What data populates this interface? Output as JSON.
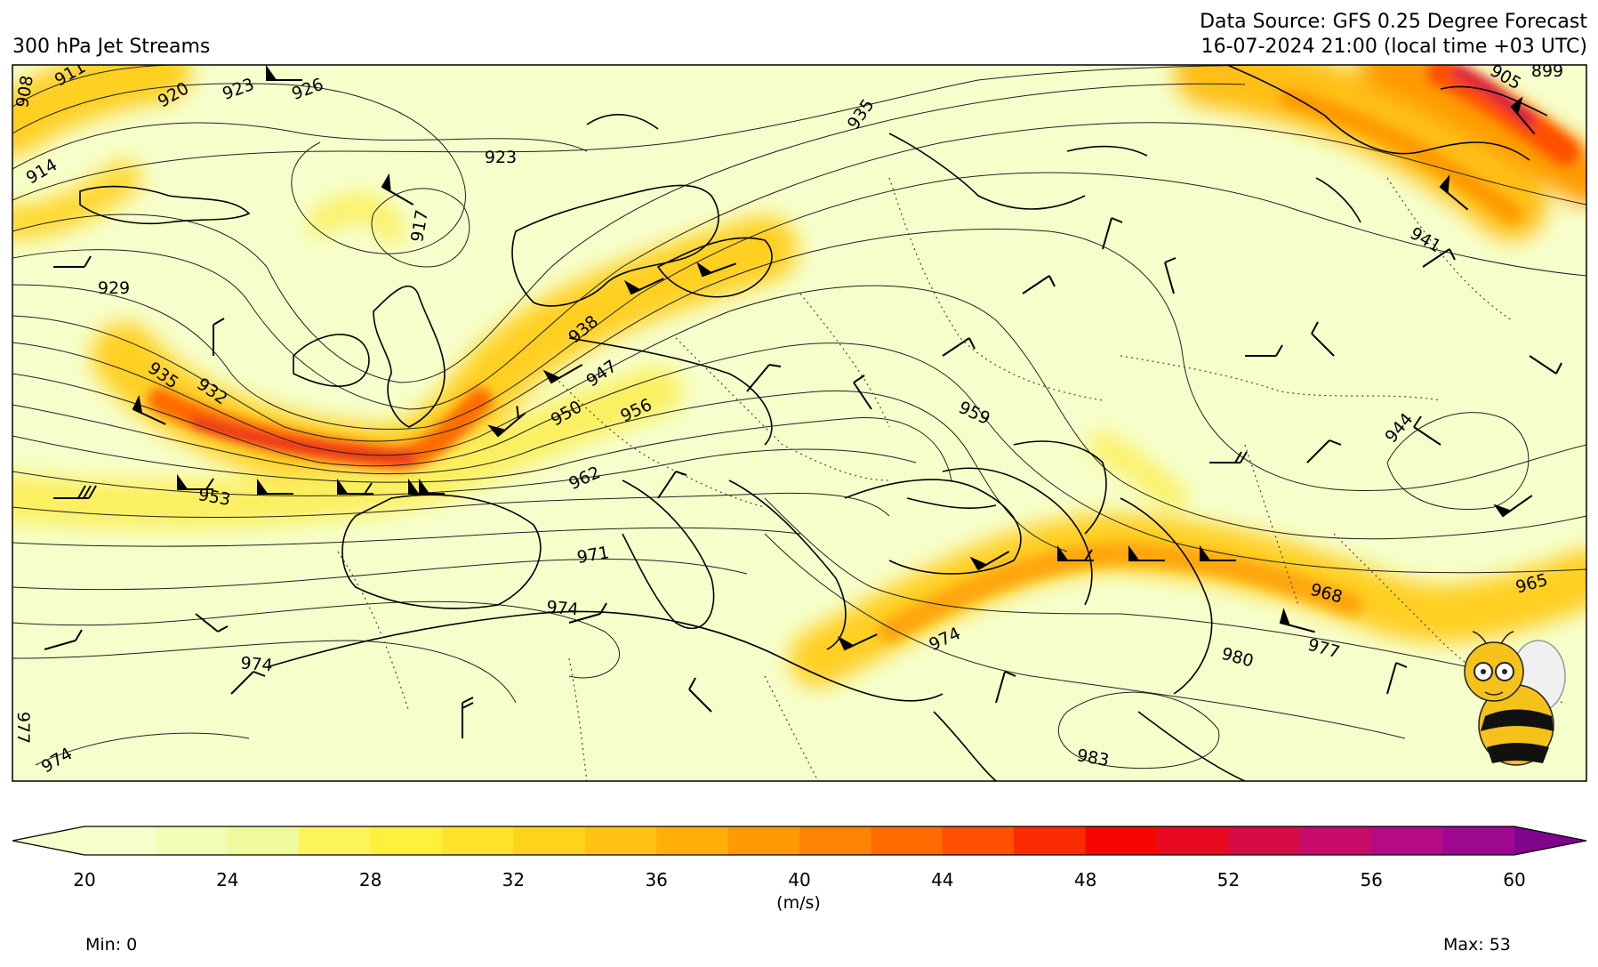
{
  "header": {
    "title": "300 hPa Jet Streams",
    "data_source": "Data Source: GFS 0.25 Degree Forecast",
    "valid_time": "16-07-2024 21:00 (local time +03 UTC)"
  },
  "colorbar": {
    "ticks": [
      "20",
      "24",
      "28",
      "32",
      "36",
      "40",
      "44",
      "48",
      "52",
      "56",
      "60"
    ],
    "unit": "(m/s)",
    "colors": [
      "#f6ffcc",
      "#f2fcb4",
      "#f0fa9c",
      "#fbf45a",
      "#fff03c",
      "#ffe32a",
      "#ffd31c",
      "#ffc212",
      "#ffae0a",
      "#ff9a05",
      "#ff8303",
      "#ff6a01",
      "#ff4f00",
      "#fb2b00",
      "#f50600",
      "#e80a20",
      "#d60a45",
      "#c80a6a",
      "#b40a84",
      "#9e0890",
      "#80048c"
    ],
    "min_label": "Min: 0",
    "max_label": "Max: 53"
  },
  "contour_labels": [
    "908",
    "911",
    "914",
    "917",
    "920",
    "923",
    "926",
    "929",
    "932",
    "935",
    "938",
    "941",
    "944",
    "947",
    "950",
    "953",
    "956",
    "959",
    "962",
    "965",
    "968",
    "971",
    "974",
    "977",
    "980",
    "983",
    "905",
    "899"
  ],
  "colors": {
    "background": "#f6ffcc",
    "jet_core": "#e8281a",
    "contour": "#222222",
    "coast": "#000000"
  },
  "icons": [
    "bee-mascot-icon",
    "wind-barb-icon"
  ]
}
